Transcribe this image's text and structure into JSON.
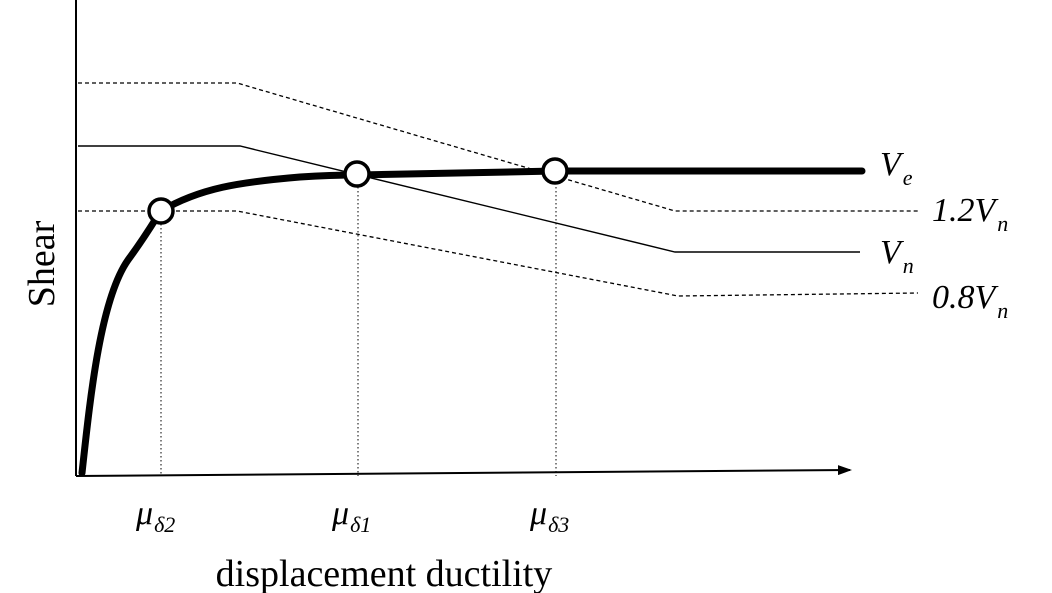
{
  "axes": {
    "y_label": "Shear",
    "x_label": "displacement ductility"
  },
  "x_ticks": [
    {
      "symbol": "μ",
      "subscript": "δ2"
    },
    {
      "symbol": "μ",
      "subscript": "δ1"
    },
    {
      "symbol": "μ",
      "subscript": "δ3"
    }
  ],
  "curves": {
    "Ve": {
      "prefix": "",
      "symbol": "V",
      "subscript": "e"
    },
    "Vn12": {
      "prefix": "1.2",
      "symbol": "V",
      "subscript": "n"
    },
    "Vn": {
      "prefix": "",
      "symbol": "V",
      "subscript": "n"
    },
    "Vn08": {
      "prefix": "0.8",
      "symbol": "V",
      "subscript": "n"
    }
  }
}
